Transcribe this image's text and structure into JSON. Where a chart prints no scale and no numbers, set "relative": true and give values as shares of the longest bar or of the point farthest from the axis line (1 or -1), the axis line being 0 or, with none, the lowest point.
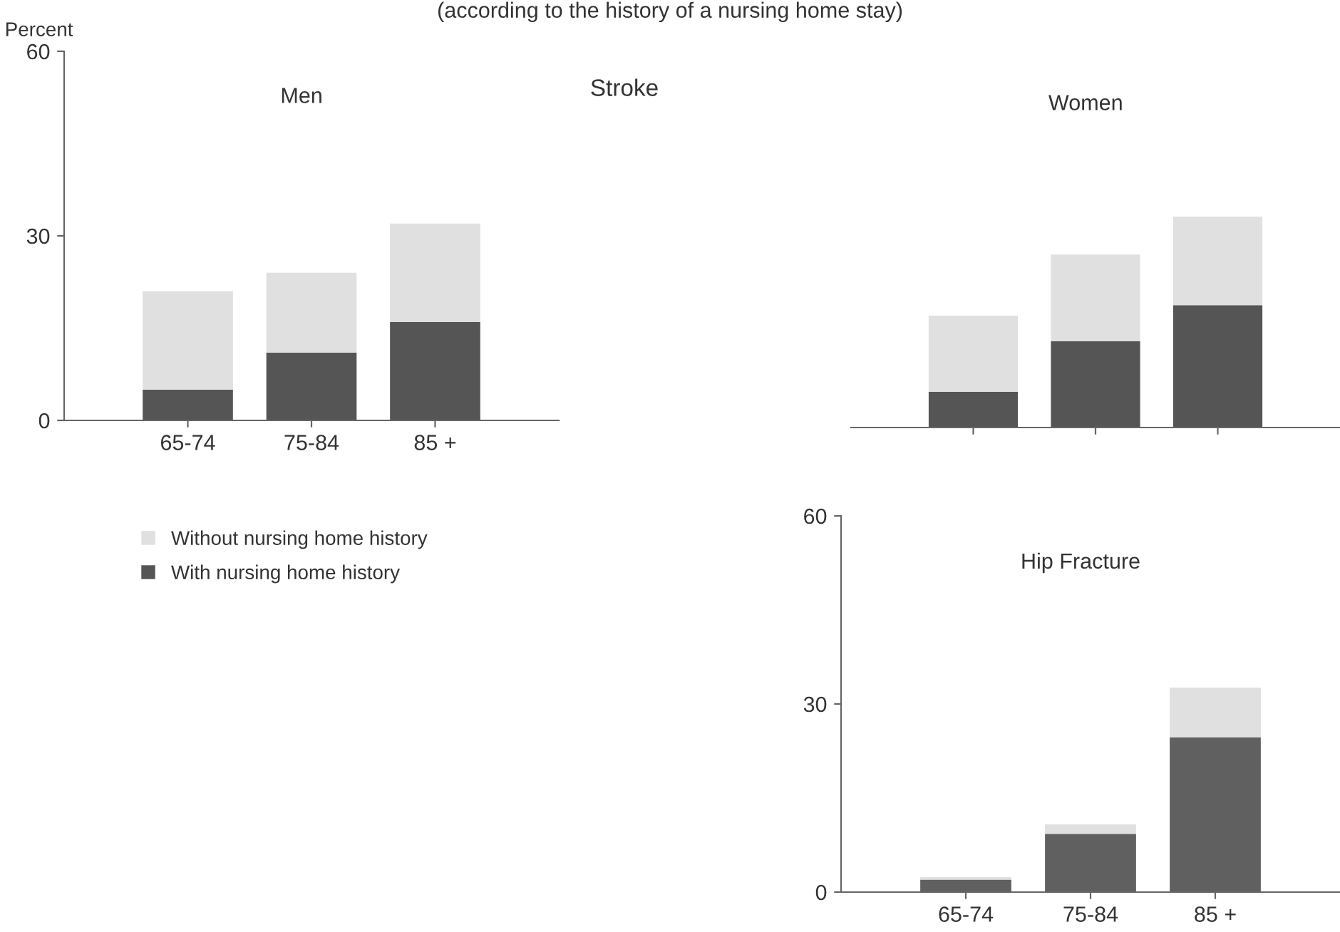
{
  "chart_data": [
    {
      "type": "bar",
      "title": "Men",
      "subtitle": "(according to the history of a nursing home stay)",
      "annotations": [
        "Stroke"
      ],
      "ylabel": "Percent",
      "categories": [
        "65-74",
        "75-84",
        "85 +"
      ],
      "stacked": true,
      "ylim": [
        0,
        60
      ],
      "yticks": [
        0,
        30,
        60
      ],
      "legend": "bottom left",
      "series": [
        {
          "name": "With nursing home history",
          "color": "#555555",
          "values": [
            5,
            11,
            16
          ]
        },
        {
          "name": "Without nursing home history",
          "color": "#e0e0e0",
          "values": [
            16,
            13,
            16
          ]
        }
      ]
    },
    {
      "type": "bar",
      "title": "Women",
      "categories": [
        null,
        null,
        null
      ],
      "stacked": true,
      "relative": true,
      "series": [
        {
          "color": "#555555",
          "values": [
            0.17,
            0.41,
            0.58
          ]
        },
        {
          "color": "#e0e0e0",
          "values": [
            0.36,
            0.41,
            0.42
          ]
        }
      ]
    },
    {
      "type": "bar",
      "title": "Hip Fracture",
      "categories": [
        "65-74",
        "75-84",
        "85 +"
      ],
      "stacked": true,
      "ylim": [
        0,
        60
      ],
      "yticks": [
        0,
        30,
        60
      ],
      "series": [
        {
          "color": "#606060",
          "values": [
            2,
            9.3,
            24.7
          ]
        },
        {
          "color": "#e0e0e0",
          "values": [
            0.4,
            1.5,
            7.9
          ]
        }
      ]
    }
  ]
}
